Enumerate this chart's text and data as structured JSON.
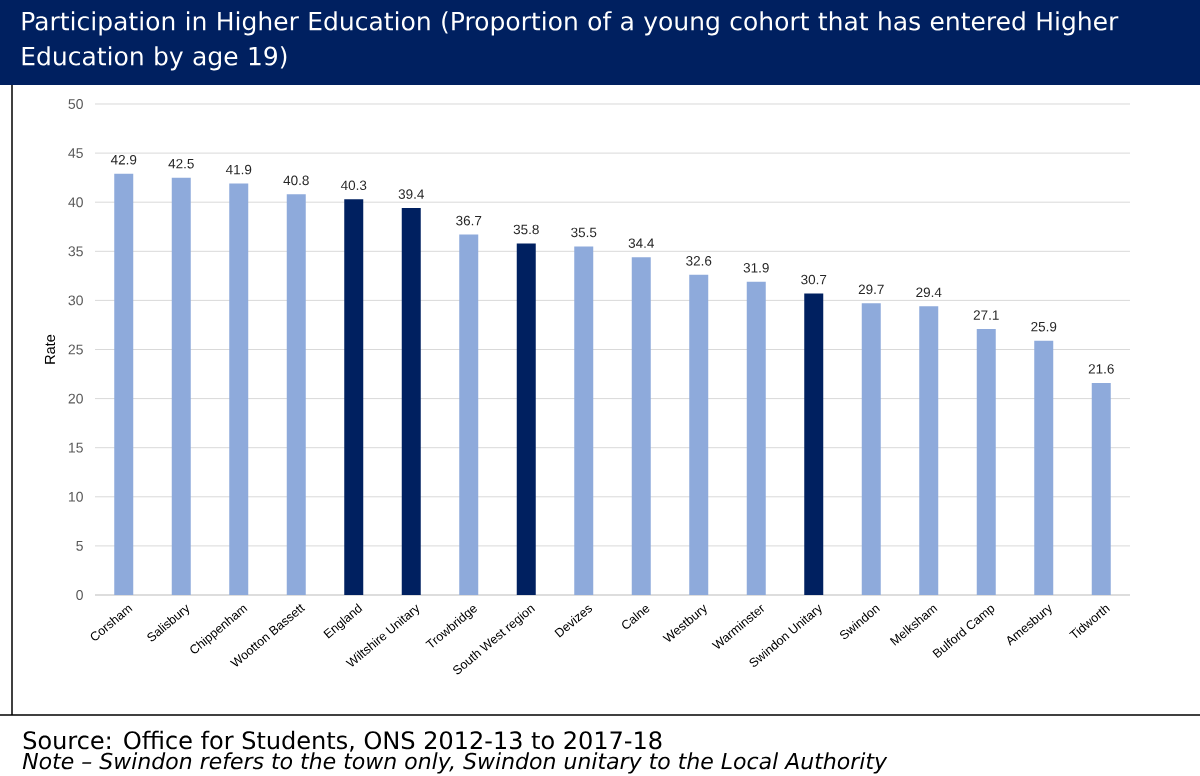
{
  "chart_data": {
    "type": "bar",
    "title": "Participation in Higher Education (Proportion of a young cohort that has entered Higher Education by age 19)",
    "ylabel": "Rate",
    "categories": [
      "Corsham",
      "Salisbury",
      "Chippenham",
      "Wootton Bassett",
      "England",
      "Wiltshire Unitary",
      "Trowbridge",
      "South West region",
      "Devizes",
      "Calne",
      "Westbury",
      "Warminster",
      "Swindon Unitary",
      "Swindon",
      "Melksham",
      "Bulford Camp",
      "Amesbury",
      "Tidworth"
    ],
    "values": [
      42.9,
      42.5,
      41.9,
      40.8,
      40.3,
      39.4,
      36.7,
      35.8,
      35.5,
      34.4,
      32.6,
      31.9,
      30.7,
      29.7,
      29.4,
      27.1,
      25.9,
      21.6
    ],
    "colors": [
      "#8eaadb",
      "#8eaadb",
      "#8eaadb",
      "#8eaadb",
      "#002060",
      "#002060",
      "#8eaadb",
      "#002060",
      "#8eaadb",
      "#8eaadb",
      "#8eaadb",
      "#8eaadb",
      "#002060",
      "#8eaadb",
      "#8eaadb",
      "#8eaadb",
      "#8eaadb",
      "#8eaadb"
    ],
    "ylim": [
      0,
      50
    ],
    "yticks": [
      0,
      5,
      10,
      15,
      20,
      25,
      30,
      35,
      40,
      45,
      50
    ],
    "grid": "y",
    "data_labels": true,
    "annotations": [
      "Source: Office for Students, ONS 2012-13 to 2017-18",
      "Note – Swindon refers to the town only, Swindon unitary to the Local Authority"
    ]
  }
}
